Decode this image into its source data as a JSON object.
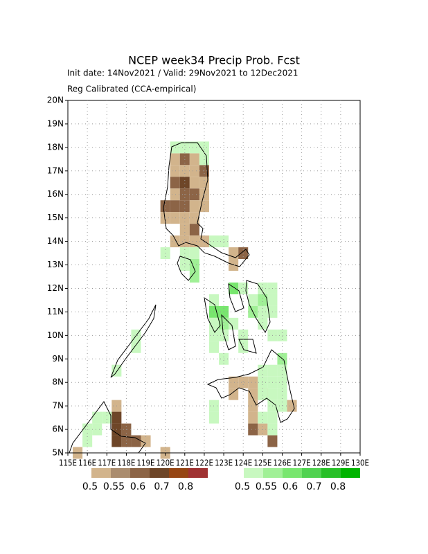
{
  "header": {
    "title": "NCEP week34 Precip Prob. Fcst",
    "subtitle": "Init date: 14Nov2021 / Valid: 29Nov2021 to 12Dec2021",
    "method": "Reg Calibrated (CCA-empirical)"
  },
  "chart_data": {
    "type": "grid-map",
    "xlim": [
      115,
      130
    ],
    "ylim": [
      5,
      20
    ],
    "xticks": [
      {
        "value": 115,
        "label": "115E"
      },
      {
        "value": 116,
        "label": "116E"
      },
      {
        "value": 117,
        "label": "117E"
      },
      {
        "value": 118,
        "label": "118E"
      },
      {
        "value": 119,
        "label": "119E"
      },
      {
        "value": 120,
        "label": "120E"
      },
      {
        "value": 121,
        "label": "121E"
      },
      {
        "value": 122,
        "label": "122E"
      },
      {
        "value": 123,
        "label": "123E"
      },
      {
        "value": 124,
        "label": "124E"
      },
      {
        "value": 125,
        "label": "125E"
      },
      {
        "value": 126,
        "label": "126E"
      },
      {
        "value": 127,
        "label": "127E"
      },
      {
        "value": 128,
        "label": "128E"
      },
      {
        "value": 129,
        "label": "129E"
      },
      {
        "value": 130,
        "label": "130E"
      }
    ],
    "yticks": [
      {
        "value": 5,
        "label": "5N"
      },
      {
        "value": 6,
        "label": "6N"
      },
      {
        "value": 7,
        "label": "7N"
      },
      {
        "value": 8,
        "label": "8N"
      },
      {
        "value": 9,
        "label": "9N"
      },
      {
        "value": 10,
        "label": "10N"
      },
      {
        "value": 11,
        "label": "11N"
      },
      {
        "value": 12,
        "label": "12N"
      },
      {
        "value": 13,
        "label": "13N"
      },
      {
        "value": 14,
        "label": "14N"
      },
      {
        "value": 15,
        "label": "15N"
      },
      {
        "value": 16,
        "label": "16N"
      },
      {
        "value": 17,
        "label": "17N"
      },
      {
        "value": 18,
        "label": "18N"
      },
      {
        "value": 19,
        "label": "19N"
      },
      {
        "value": 20,
        "label": "20N"
      }
    ],
    "grid": true,
    "cell_size": 0.5,
    "below_legend": {
      "colors": [
        "#d2b48c",
        "#aa8c6e",
        "#8c6446",
        "#6e4628",
        "#964614",
        "#a03232"
      ],
      "labels": [
        0.5,
        0.55,
        0.6,
        0.7,
        0.8
      ]
    },
    "above_legend": {
      "colors": [
        "#c8f8c0",
        "#a0f096",
        "#78e66e",
        "#50d250",
        "#28c028",
        "#00b400"
      ],
      "labels": [
        0.5,
        0.55,
        0.6,
        0.7,
        0.8
      ]
    },
    "below_cells": [
      [
        120.5,
        17.5,
        0.5
      ],
      [
        121,
        17.5,
        0.6
      ],
      [
        121.5,
        17.5,
        0.5
      ],
      [
        120.5,
        17,
        0.5
      ],
      [
        121,
        17,
        0.5
      ],
      [
        121.5,
        17,
        0.5
      ],
      [
        122,
        17,
        0.6
      ],
      [
        120.5,
        16.5,
        0.6
      ],
      [
        121,
        16.5,
        0.7
      ],
      [
        121.5,
        16.5,
        0.5
      ],
      [
        122,
        16.5,
        0.5
      ],
      [
        120.5,
        16,
        0.5
      ],
      [
        121,
        16,
        0.6
      ],
      [
        121.5,
        16,
        0.6
      ],
      [
        122,
        16,
        0.5
      ],
      [
        120,
        15.5,
        0.6
      ],
      [
        120.5,
        15.5,
        0.6
      ],
      [
        121,
        15.5,
        0.6
      ],
      [
        121.5,
        15.5,
        0.5
      ],
      [
        122,
        15.5,
        0.5
      ],
      [
        120,
        15,
        0.5
      ],
      [
        120.5,
        15,
        0.5
      ],
      [
        121,
        15,
        0.5
      ],
      [
        121.5,
        15,
        0.5
      ],
      [
        121,
        14.5,
        0.5
      ],
      [
        121.5,
        14.5,
        0.6
      ],
      [
        120.5,
        14,
        0.5
      ],
      [
        121,
        14,
        0.5
      ],
      [
        121.5,
        14,
        0.5
      ],
      [
        122,
        14,
        0.5
      ],
      [
        123.5,
        13.5,
        0.5
      ],
      [
        124,
        13.5,
        0.6
      ],
      [
        123.5,
        13,
        0.5
      ],
      [
        123.5,
        8,
        0.5
      ],
      [
        124,
        8,
        0.5
      ],
      [
        124.5,
        8,
        0.5
      ],
      [
        123.5,
        7.5,
        0.5
      ],
      [
        124.5,
        7.5,
        0.5
      ],
      [
        125,
        7.5,
        0.5
      ],
      [
        124.5,
        7,
        0.5
      ],
      [
        126.5,
        7,
        0.5
      ],
      [
        124.5,
        6.5,
        0.5
      ],
      [
        124.5,
        6,
        0.6
      ],
      [
        125,
        6,
        0.5
      ],
      [
        125.5,
        5.5,
        0.6
      ],
      [
        117.5,
        7,
        0.5
      ],
      [
        117.5,
        6.5,
        0.7
      ],
      [
        117.5,
        6,
        0.7
      ],
      [
        118,
        6,
        0.6
      ],
      [
        117.5,
        5.5,
        0.7
      ],
      [
        118,
        5.5,
        0.6
      ],
      [
        118.5,
        5.5,
        0.6
      ],
      [
        119,
        5.5,
        0.5
      ],
      [
        115.5,
        5,
        0.5
      ],
      [
        120,
        5,
        0.5
      ]
    ],
    "above_cells": [
      [
        120.5,
        18,
        0.5
      ],
      [
        121,
        18,
        0.5
      ],
      [
        121.5,
        18,
        0.5
      ],
      [
        122,
        18,
        0.5
      ],
      [
        122,
        17.5,
        0.5
      ],
      [
        122.5,
        14,
        0.5
      ],
      [
        123,
        14,
        0.5
      ],
      [
        120,
        13.5,
        0.5
      ],
      [
        121,
        13.5,
        0.5
      ],
      [
        121.5,
        13.5,
        0.5
      ],
      [
        121,
        13,
        0.5
      ],
      [
        121.5,
        13,
        0.55
      ],
      [
        121.5,
        12.5,
        0.55
      ],
      [
        123.5,
        12,
        0.6
      ],
      [
        124,
        12,
        0.5
      ],
      [
        125,
        12,
        0.5
      ],
      [
        125.5,
        12,
        0.5
      ],
      [
        122.5,
        11.5,
        0.5
      ],
      [
        124.5,
        11.5,
        0.5
      ],
      [
        125,
        11.5,
        0.55
      ],
      [
        125.5,
        11.5,
        0.5
      ],
      [
        122.5,
        11,
        0.6
      ],
      [
        123,
        11,
        0.6
      ],
      [
        124.5,
        11,
        0.55
      ],
      [
        125,
        11,
        0.5
      ],
      [
        125.5,
        11,
        0.5
      ],
      [
        122.5,
        10.5,
        0.5
      ],
      [
        123,
        10.5,
        0.55
      ],
      [
        123.5,
        10.5,
        0.5
      ],
      [
        125,
        10.5,
        0.5
      ],
      [
        122.5,
        10,
        0.5
      ],
      [
        123,
        10,
        0.5
      ],
      [
        124,
        10,
        0.5
      ],
      [
        125.5,
        10,
        0.5
      ],
      [
        126,
        10,
        0.5
      ],
      [
        122.5,
        9.5,
        0.5
      ],
      [
        124,
        9.5,
        0.5
      ],
      [
        123,
        9,
        0.5
      ],
      [
        126,
        9,
        0.55
      ],
      [
        125,
        8.5,
        0.5
      ],
      [
        125.5,
        8.5,
        0.5
      ],
      [
        126,
        8.5,
        0.5
      ],
      [
        125,
        8,
        0.5
      ],
      [
        125.5,
        8,
        0.5
      ],
      [
        126,
        8,
        0.5
      ],
      [
        125,
        7.5,
        0.5
      ],
      [
        125.5,
        7.5,
        0.5
      ],
      [
        126,
        7.5,
        0.5
      ],
      [
        122.5,
        7,
        0.5
      ],
      [
        125.5,
        7,
        0.5
      ],
      [
        126,
        7,
        0.5
      ],
      [
        122.5,
        6.5,
        0.5
      ],
      [
        125,
        6.5,
        0.5
      ],
      [
        125.5,
        6.5,
        0.5
      ],
      [
        125.5,
        6,
        0.5
      ],
      [
        118.5,
        10,
        0.5
      ],
      [
        118.5,
        9.5,
        0.5
      ],
      [
        117.5,
        8.5,
        0.5
      ],
      [
        116.5,
        6.5,
        0.5
      ],
      [
        117,
        6.5,
        0.5
      ],
      [
        116,
        6,
        0.5
      ],
      [
        116.5,
        6,
        0.5
      ],
      [
        116,
        5.5,
        0.5
      ]
    ]
  }
}
